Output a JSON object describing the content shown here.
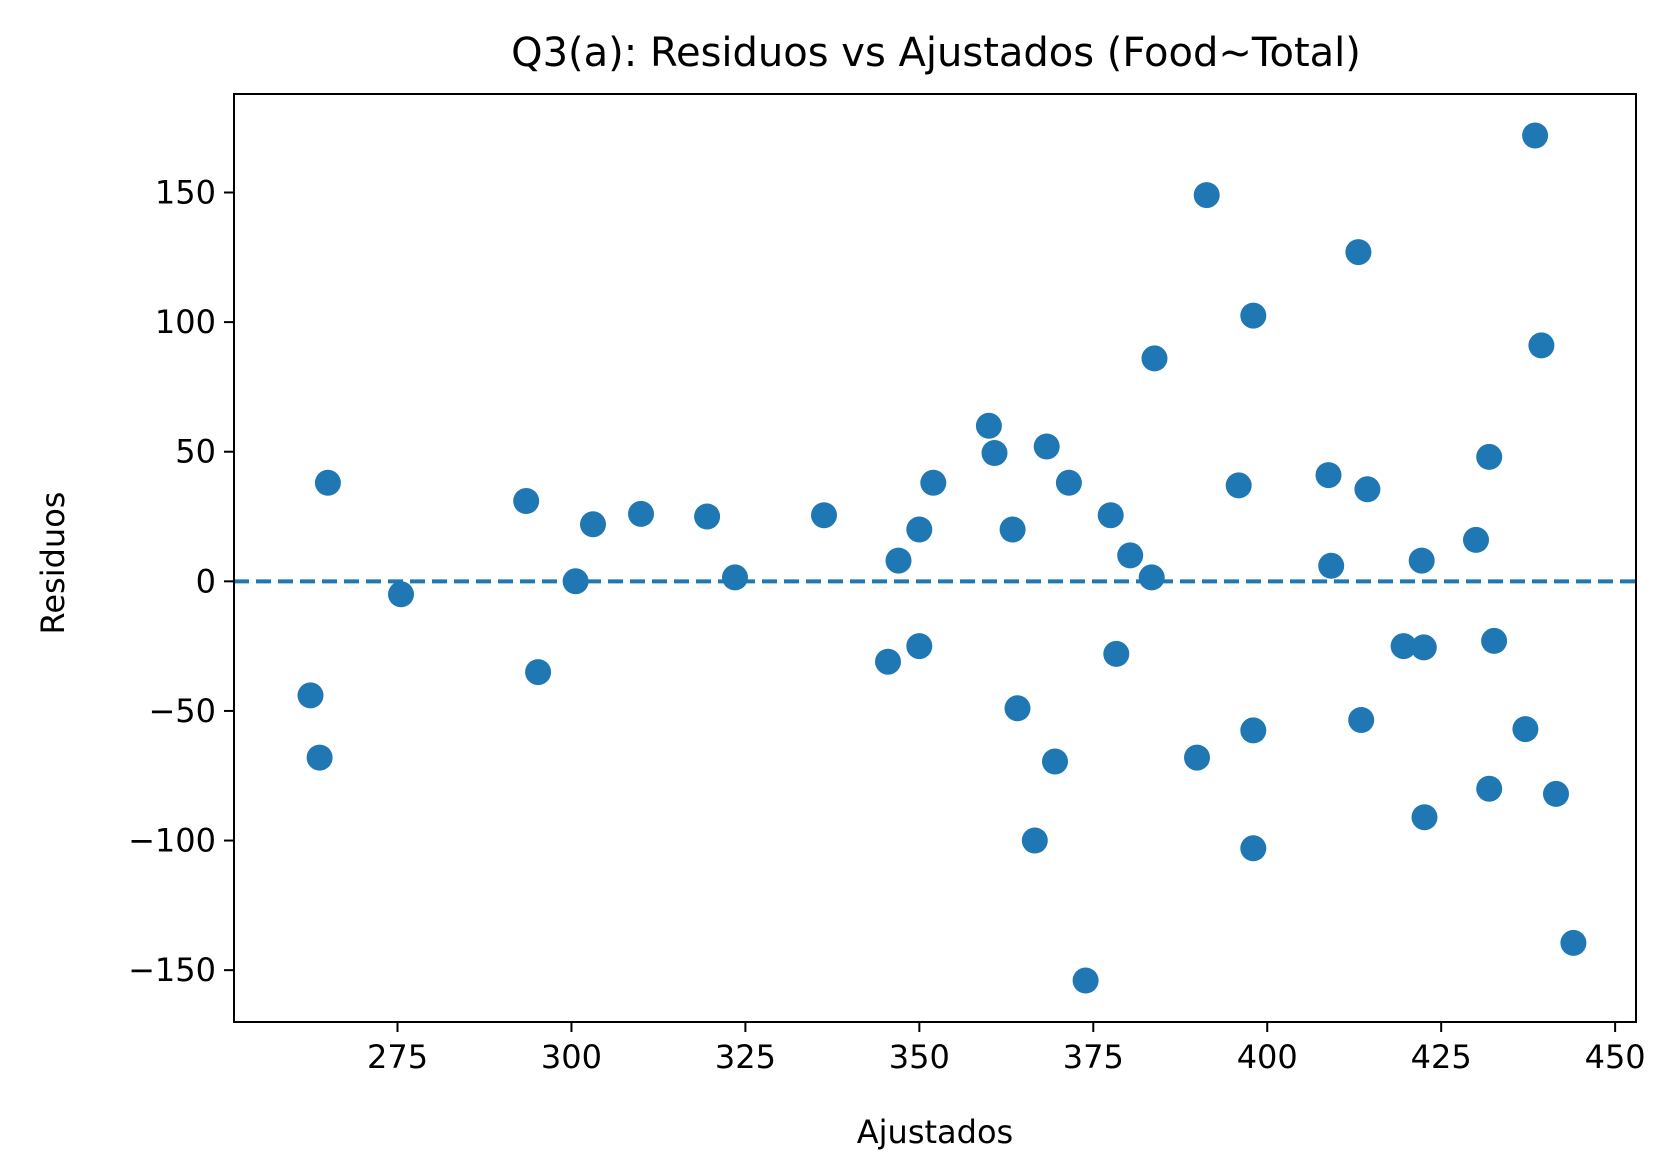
{
  "chart_data": {
    "type": "scatter",
    "title": "Q3(a): Residuos vs Ajustados (Food~Total)",
    "xlabel": "Ajustados",
    "ylabel": "Residuos",
    "xlim": [
      251.5,
      453
    ],
    "ylim": [
      -170,
      188
    ],
    "xticks": [
      275,
      300,
      325,
      350,
      375,
      400,
      425,
      450
    ],
    "yticks": [
      -150,
      -100,
      -50,
      0,
      50,
      100,
      150
    ],
    "xtick_labels": [
      "275",
      "300",
      "325",
      "350",
      "375",
      "400",
      "425",
      "450"
    ],
    "ytick_labels": [
      "−150",
      "−100",
      "−50",
      "0",
      "50",
      "100",
      "150"
    ],
    "reference_line": {
      "y": 0,
      "style": "dashed"
    },
    "grid": false,
    "color": "#1f77b4",
    "points": [
      {
        "x": 262.5,
        "y": -44
      },
      {
        "x": 263.8,
        "y": -68
      },
      {
        "x": 265.0,
        "y": 38
      },
      {
        "x": 275.5,
        "y": -5
      },
      {
        "x": 293.5,
        "y": 31
      },
      {
        "x": 295.2,
        "y": -35
      },
      {
        "x": 300.6,
        "y": 0
      },
      {
        "x": 303.1,
        "y": 22
      },
      {
        "x": 310.0,
        "y": 26
      },
      {
        "x": 319.5,
        "y": 25
      },
      {
        "x": 323.5,
        "y": 1.5
      },
      {
        "x": 336.3,
        "y": 25.5
      },
      {
        "x": 345.5,
        "y": -31
      },
      {
        "x": 347.0,
        "y": 8
      },
      {
        "x": 350.0,
        "y": 20
      },
      {
        "x": 350.0,
        "y": -25
      },
      {
        "x": 352.0,
        "y": 38
      },
      {
        "x": 360.0,
        "y": 60
      },
      {
        "x": 360.8,
        "y": 49.5
      },
      {
        "x": 363.4,
        "y": 20
      },
      {
        "x": 364.1,
        "y": -49
      },
      {
        "x": 366.6,
        "y": -100
      },
      {
        "x": 368.3,
        "y": 52
      },
      {
        "x": 369.5,
        "y": -69.5
      },
      {
        "x": 371.5,
        "y": 38
      },
      {
        "x": 373.9,
        "y": -154
      },
      {
        "x": 377.5,
        "y": 25.5
      },
      {
        "x": 378.3,
        "y": -28
      },
      {
        "x": 380.3,
        "y": 10
      },
      {
        "x": 383.4,
        "y": 1.5
      },
      {
        "x": 383.8,
        "y": 86
      },
      {
        "x": 389.9,
        "y": -68
      },
      {
        "x": 391.3,
        "y": 149
      },
      {
        "x": 395.9,
        "y": 37
      },
      {
        "x": 398.0,
        "y": 102.5
      },
      {
        "x": 398.0,
        "y": -57.5
      },
      {
        "x": 398.0,
        "y": -103
      },
      {
        "x": 408.8,
        "y": 41
      },
      {
        "x": 409.2,
        "y": 6
      },
      {
        "x": 413.1,
        "y": 127
      },
      {
        "x": 413.5,
        "y": -53.5
      },
      {
        "x": 414.4,
        "y": 35.5
      },
      {
        "x": 419.6,
        "y": -25
      },
      {
        "x": 422.2,
        "y": 8
      },
      {
        "x": 422.5,
        "y": -25.5
      },
      {
        "x": 422.6,
        "y": -91
      },
      {
        "x": 430.0,
        "y": 16
      },
      {
        "x": 431.9,
        "y": 48
      },
      {
        "x": 431.9,
        "y": -80
      },
      {
        "x": 432.6,
        "y": -23
      },
      {
        "x": 437.1,
        "y": -57
      },
      {
        "x": 438.5,
        "y": 172
      },
      {
        "x": 439.4,
        "y": 91
      },
      {
        "x": 441.5,
        "y": -82
      },
      {
        "x": 444.0,
        "y": -139.5
      }
    ]
  }
}
